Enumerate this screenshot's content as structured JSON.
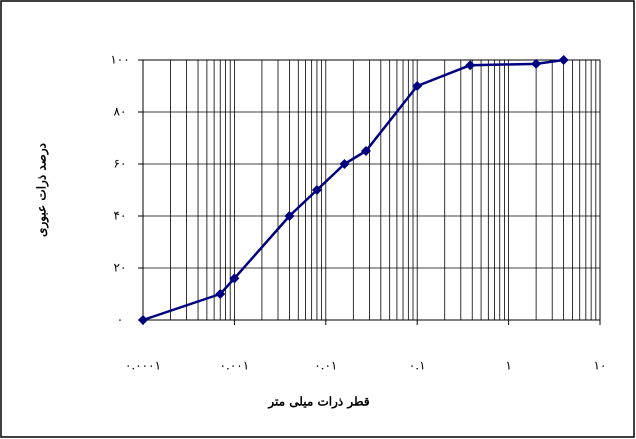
{
  "chart_data": {
    "type": "line",
    "log_x": true,
    "grid": true,
    "minor_grid": true,
    "color": "#000080",
    "xlabel": "قطر ذرات میلی متر",
    "ylabel": "درصد ذرات عبوری",
    "x": [
      0.0001,
      0.0007,
      0.001,
      0.004,
      0.008,
      0.016,
      0.0275,
      0.1,
      0.38,
      2,
      4
    ],
    "values": [
      0,
      10,
      16,
      40,
      50,
      60,
      65,
      90,
      98,
      98.5,
      100
    ],
    "xlim": [
      0.0001,
      10
    ],
    "xticks": [
      {
        "value": 0.0001,
        "label": "۰.۰۰۰۱"
      },
      {
        "value": 0.001,
        "label": "۰.۰۰۱"
      },
      {
        "value": 0.01,
        "label": "۰.۰۱"
      },
      {
        "value": 0.1,
        "label": "۰.۱"
      },
      {
        "value": 1,
        "label": "۱"
      },
      {
        "value": 10,
        "label": "۱۰"
      }
    ],
    "ylim": [
      0,
      100
    ],
    "yticks": [
      {
        "value": 0,
        "label": "۰"
      },
      {
        "value": 20,
        "label": "۲۰"
      },
      {
        "value": 40,
        "label": "۴۰"
      },
      {
        "value": 60,
        "label": "۶۰"
      },
      {
        "value": 80,
        "label": "۸۰"
      },
      {
        "value": 100,
        "label": "۱۰۰"
      }
    ]
  }
}
